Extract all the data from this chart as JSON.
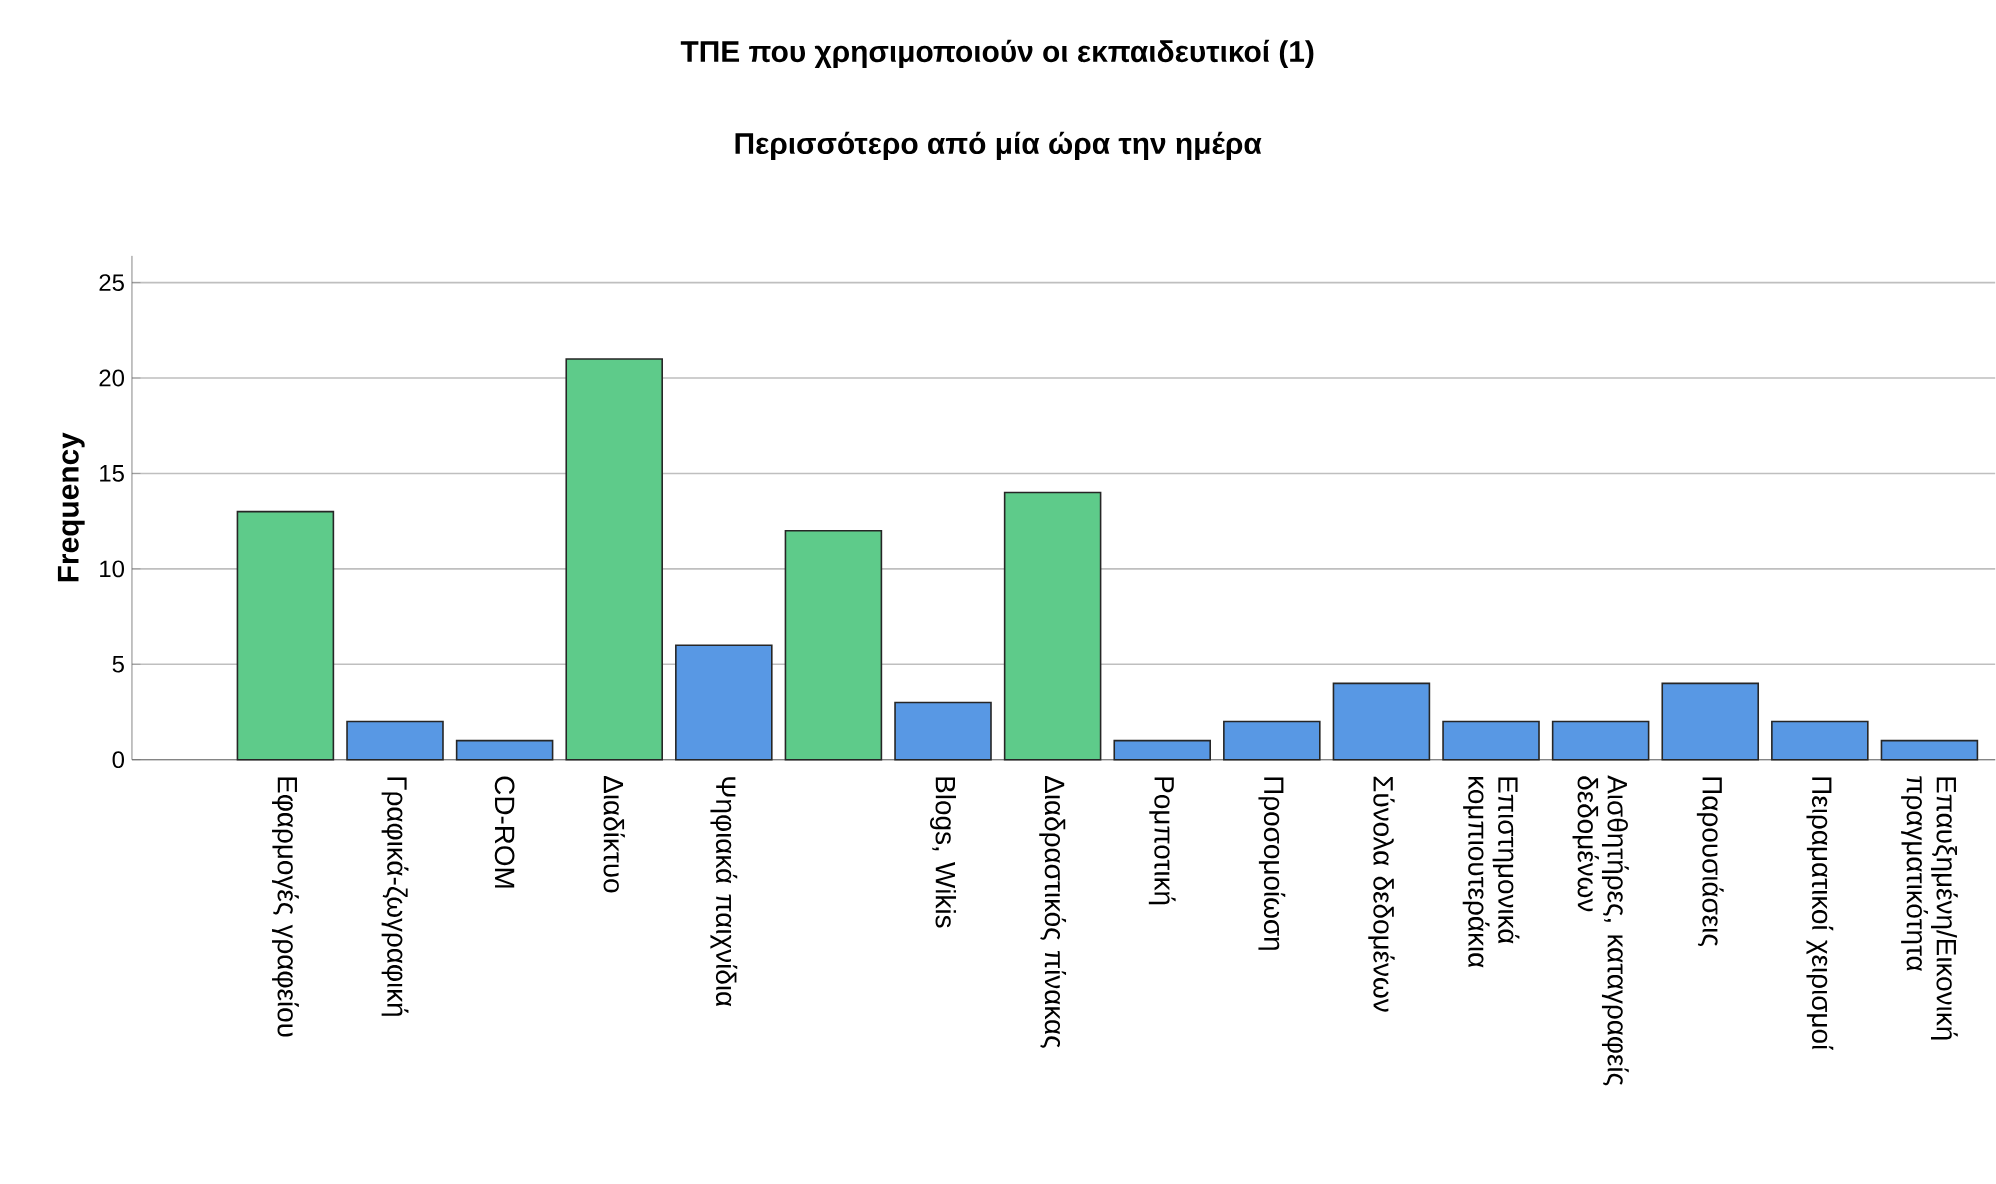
{
  "chart_data": {
    "type": "bar",
    "title": "ΤΠΕ που χρησιμοποιούν οι εκπαιδευτικοί (1)",
    "subtitle": "Περισσότερο από μία ώρα την ημέρα",
    "ylabel": "Frequency",
    "categories": [
      "Εφαρμογές γραφείου",
      "Γραφικά-ζωγραφική",
      "CD-ROM",
      "Διαδίκτυο",
      "Ψηφιακά παιχνίδια",
      null,
      "Blogs, Wikis",
      "Διαδραστικός πίνακας",
      "Ρομποτική",
      "Προσομοίωση",
      "Σύνολα δεδομένων",
      "Επιστημονικά κομπιουτεράκια",
      "Αισθητήρες, καταγραφείς δεδομένων",
      "Παρουσιάσεις",
      "Πειραματικοί χειρισμοί",
      "Επαυξημένη/Εικονική πραγματικότητα"
    ],
    "values": [
      13,
      2,
      1,
      21,
      6,
      12,
      3,
      14,
      1,
      2,
      4,
      2,
      2,
      4,
      2,
      1
    ],
    "colors": [
      "#5ecb8a",
      "#5898e4",
      "#5898e4",
      "#5ecb8a",
      "#5898e4",
      "#5ecb8a",
      "#5898e4",
      "#5ecb8a",
      "#5898e4",
      "#5898e4",
      "#5898e4",
      "#5898e4",
      "#5898e4",
      "#5898e4",
      "#5898e4",
      "#5898e4"
    ],
    "ylim": [
      0,
      26.4
    ],
    "yticks": [
      0,
      5,
      10,
      15,
      20,
      25
    ],
    "grid": "y"
  }
}
